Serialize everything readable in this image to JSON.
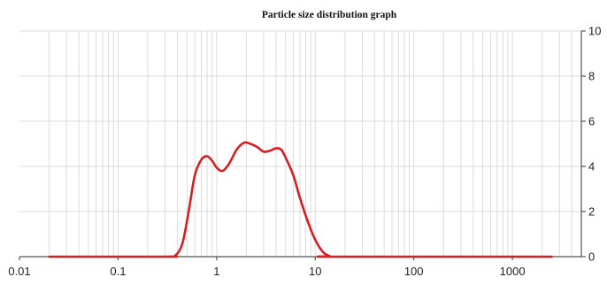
{
  "chart_data": {
    "type": "line",
    "title": "Particle size distribution graph",
    "xlabel": "",
    "ylabel": "",
    "xscale": "log",
    "xlim": [
      0.01,
      5000
    ],
    "ylim": [
      0,
      10
    ],
    "grid": true,
    "x_ticks": [
      0.01,
      0.1,
      1,
      10,
      100,
      1000
    ],
    "x_tick_labels": [
      "0.01",
      "0.1",
      "1",
      "10",
      "100",
      "1000"
    ],
    "y_ticks": [
      0,
      2,
      4,
      6,
      8,
      10
    ],
    "y_tick_labels": [
      "0",
      "2",
      "4",
      "6",
      "8",
      "10"
    ],
    "y_axis_side": "right",
    "series": [
      {
        "color": "#d42020",
        "x": [
          0.02,
          0.3,
          0.38,
          0.45,
          0.52,
          0.6,
          0.7,
          0.8,
          0.9,
          1.0,
          1.15,
          1.35,
          1.6,
          1.9,
          2.2,
          2.6,
          3.0,
          3.5,
          4.0,
          4.5,
          5.0,
          6.0,
          7.0,
          8.5,
          10.0,
          12.0,
          14.0,
          16.0,
          2500
        ],
        "values": [
          0,
          0,
          0.05,
          0.6,
          2.0,
          3.6,
          4.3,
          4.45,
          4.25,
          3.95,
          3.8,
          4.15,
          4.75,
          5.05,
          5.0,
          4.85,
          4.65,
          4.7,
          4.8,
          4.75,
          4.4,
          3.6,
          2.6,
          1.5,
          0.75,
          0.2,
          0.03,
          0,
          0
        ]
      }
    ]
  }
}
